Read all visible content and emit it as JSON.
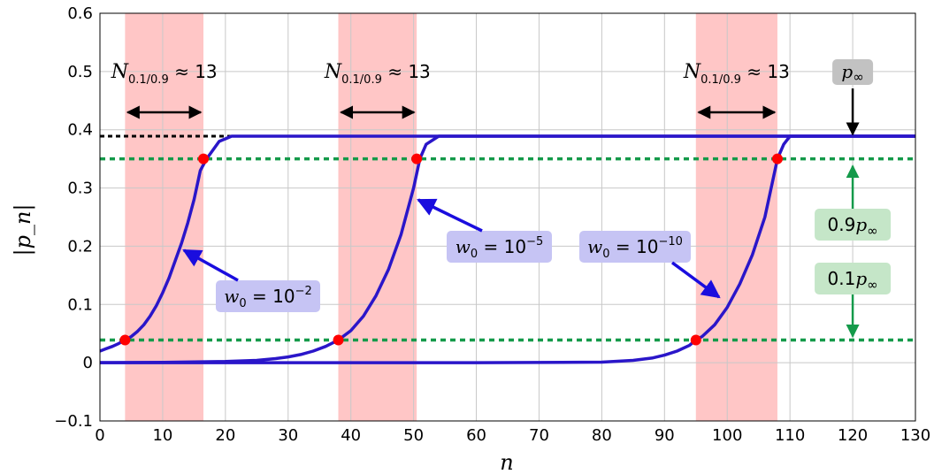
{
  "chart_data": {
    "type": "line",
    "xlabel": "n",
    "ylabel": "|p_n|",
    "xlim": [
      0,
      130
    ],
    "ylim": [
      -0.1,
      0.6
    ],
    "xticks": [
      0,
      10,
      20,
      30,
      40,
      50,
      60,
      70,
      80,
      90,
      100,
      110,
      120,
      130
    ],
    "yticks": [
      -0.1,
      0,
      0.1,
      0.2,
      0.3,
      0.4,
      0.5,
      0.6
    ],
    "ytick_labels": [
      "−0.1",
      "0",
      "0.1",
      "0.2",
      "0.3",
      "0.4",
      "0.5",
      "0.6"
    ],
    "grid": true,
    "p_inf": 0.389,
    "level_low": 0.0389,
    "level_high": 0.35,
    "series": [
      {
        "name": "w0 = 10^-2",
        "color": "#2a16c9",
        "x": [
          0,
          1,
          2,
          3,
          4,
          5,
          6,
          7,
          8,
          9,
          10,
          11,
          12,
          13,
          14,
          15,
          16,
          17,
          19,
          21,
          130
        ],
        "y": [
          0.02,
          0.024,
          0.028,
          0.033,
          0.0389,
          0.045,
          0.054,
          0.065,
          0.08,
          0.098,
          0.12,
          0.145,
          0.175,
          0.205,
          0.24,
          0.28,
          0.33,
          0.35,
          0.38,
          0.389,
          0.389
        ]
      },
      {
        "name": "w0 = 10^-5",
        "color": "#2a16c9",
        "x": [
          0,
          10,
          20,
          25,
          28,
          30,
          32,
          34,
          36,
          38,
          40,
          42,
          44,
          46,
          48,
          50,
          51,
          52,
          54,
          130
        ],
        "y": [
          0.0002,
          0.0005,
          0.002,
          0.004,
          0.007,
          0.01,
          0.014,
          0.02,
          0.028,
          0.0389,
          0.055,
          0.08,
          0.115,
          0.16,
          0.22,
          0.3,
          0.35,
          0.375,
          0.389,
          0.389
        ]
      },
      {
        "name": "w0 = 10^-10",
        "color": "#2a16c9",
        "x": [
          0,
          60,
          80,
          85,
          88,
          90,
          92,
          94,
          95,
          96,
          98,
          100,
          102,
          104,
          106,
          108,
          109,
          110,
          112,
          130
        ],
        "y": [
          0.0,
          0.0,
          0.001,
          0.004,
          0.008,
          0.013,
          0.02,
          0.03,
          0.0389,
          0.045,
          0.065,
          0.095,
          0.135,
          0.185,
          0.25,
          0.35,
          0.375,
          0.389,
          0.389,
          0.389
        ]
      }
    ],
    "markers": [
      {
        "x": 4,
        "y": 0.0389
      },
      {
        "x": 16.5,
        "y": 0.35
      },
      {
        "x": 38,
        "y": 0.0389
      },
      {
        "x": 50.5,
        "y": 0.35
      },
      {
        "x": 95,
        "y": 0.0389
      },
      {
        "x": 108,
        "y": 0.35
      }
    ],
    "shaded_regions": [
      [
        4,
        16.5
      ],
      [
        38,
        50.5
      ],
      [
        95,
        108
      ]
    ],
    "rise_label": "≈ 13",
    "rise_label_sub": "0.1/0.9",
    "rise_label_var": "N",
    "curve_labels": [
      {
        "prefix": "w",
        "sub": "0",
        "text": " = 10",
        "sup": "−2"
      },
      {
        "prefix": "w",
        "sub": "0",
        "text": " = 10",
        "sup": "−5"
      },
      {
        "prefix": "w",
        "sub": "0",
        "text": " = 10",
        "sup": "−10"
      }
    ],
    "level_labels": {
      "p_inf": {
        "var": "p",
        "sub": "∞"
      },
      "high": {
        "coef": "0.9",
        "var": "p",
        "sub": "∞"
      },
      "low": {
        "coef": "0.1",
        "var": "p",
        "sub": "∞"
      }
    },
    "colors": {
      "curve": "#2a16c9",
      "marker": "#ff0000",
      "shade": "#ffc6c6",
      "level": "#149a4a",
      "curve_label_bg": "#c6c4f4",
      "level_label_bg": "#c5e6c8",
      "p_inf_label_bg": "#c2c2c2"
    }
  }
}
